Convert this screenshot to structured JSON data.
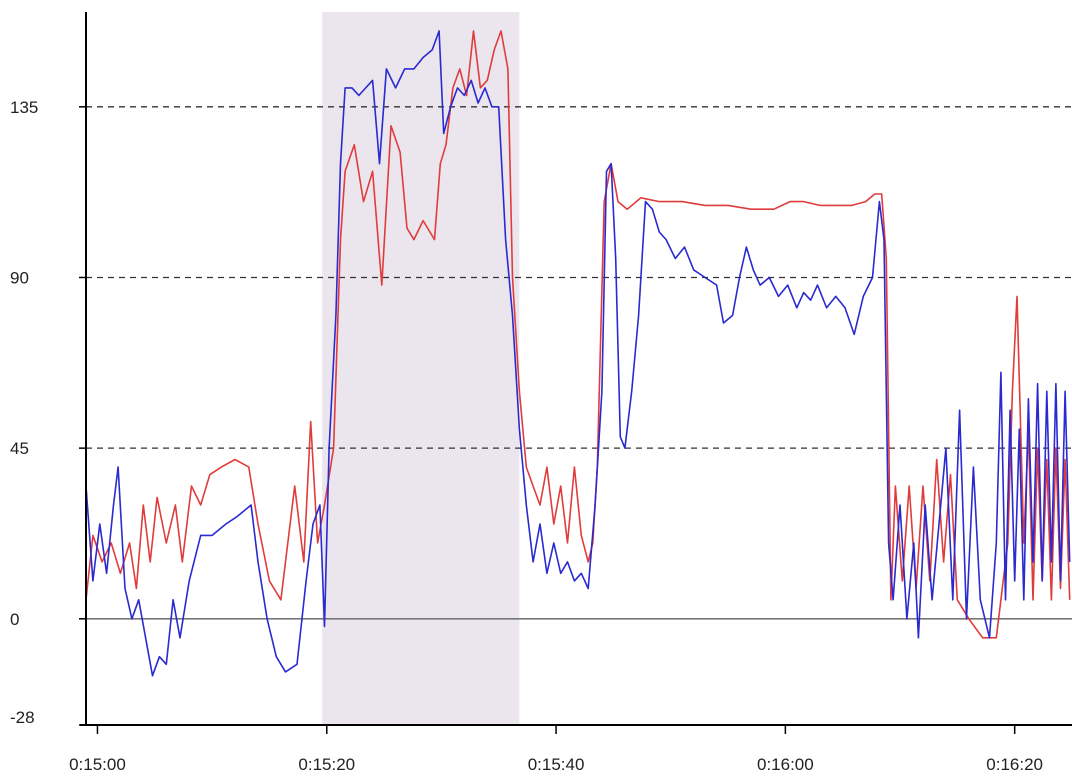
{
  "chart_data": {
    "type": "line",
    "title": "",
    "xlabel": "",
    "ylabel": "",
    "x_unit": "time (h:mm:ss)",
    "xlim": [
      "0:14:59",
      "0:16:25"
    ],
    "ylim": [
      -28,
      160
    ],
    "y_ticks": [
      {
        "value": -28,
        "label": "-28"
      },
      {
        "value": 0,
        "label": "0"
      },
      {
        "value": 45,
        "label": "45"
      },
      {
        "value": 90,
        "label": "90"
      },
      {
        "value": 135,
        "label": "135"
      }
    ],
    "x_ticks": [
      {
        "value": "0:15:00",
        "label": "0:15:00"
      },
      {
        "value": "0:15:20",
        "label": "0:15:20"
      },
      {
        "value": "0:15:40",
        "label": "0:15:40"
      },
      {
        "value": "0:16:00",
        "label": "0:16:00"
      },
      {
        "value": "0:16:20",
        "label": "0:16:20"
      }
    ],
    "grid": {
      "horizontal_dashed_at": [
        45,
        90,
        135
      ],
      "zero_line": true
    },
    "highlight_band": {
      "x_start": "0:15:19.6",
      "x_end": "0:15:36.8",
      "color": "#ebe6ee"
    },
    "legend": "none",
    "series": [
      {
        "color": "#e03c3c",
        "points": [
          [
            "0:14:59.0",
            5
          ],
          [
            "0:14:59.6",
            22
          ],
          [
            "0:15:00.4",
            15
          ],
          [
            "0:15:01.2",
            20
          ],
          [
            "0:15:02.0",
            12
          ],
          [
            "0:15:02.8",
            20
          ],
          [
            "0:15:03.4",
            8
          ],
          [
            "0:15:04.0",
            30
          ],
          [
            "0:15:04.6",
            15
          ],
          [
            "0:15:05.2",
            32
          ],
          [
            "0:15:06.0",
            20
          ],
          [
            "0:15:06.8",
            30
          ],
          [
            "0:15:07.4",
            15
          ],
          [
            "0:15:08.2",
            35
          ],
          [
            "0:15:09.0",
            30
          ],
          [
            "0:15:09.8",
            38
          ],
          [
            "0:15:10.8",
            40
          ],
          [
            "0:15:12.0",
            42
          ],
          [
            "0:15:13.2",
            40
          ],
          [
            "0:15:14.0",
            25
          ],
          [
            "0:15:15.0",
            10
          ],
          [
            "0:15:16.0",
            5
          ],
          [
            "0:15:17.2",
            35
          ],
          [
            "0:15:18.0",
            15
          ],
          [
            "0:15:18.6",
            52
          ],
          [
            "0:15:19.2",
            20
          ],
          [
            "0:15:19.8",
            30
          ],
          [
            "0:15:20.6",
            45
          ],
          [
            "0:15:21.2",
            100
          ],
          [
            "0:15:21.6",
            118
          ],
          [
            "0:15:22.4",
            125
          ],
          [
            "0:15:23.2",
            110
          ],
          [
            "0:15:24.0",
            118
          ],
          [
            "0:15:24.8",
            88
          ],
          [
            "0:15:25.6",
            130
          ],
          [
            "0:15:26.4",
            123
          ],
          [
            "0:15:27.0",
            103
          ],
          [
            "0:15:27.6",
            100
          ],
          [
            "0:15:28.4",
            105
          ],
          [
            "0:15:29.4",
            100
          ],
          [
            "0:15:29.9",
            120
          ],
          [
            "0:15:30.4",
            125
          ],
          [
            "0:15:31.0",
            140
          ],
          [
            "0:15:31.6",
            145
          ],
          [
            "0:15:32.2",
            138
          ],
          [
            "0:15:32.8",
            155
          ],
          [
            "0:15:33.4",
            140
          ],
          [
            "0:15:34.0",
            142
          ],
          [
            "0:15:34.6",
            150
          ],
          [
            "0:15:35.2",
            155
          ],
          [
            "0:15:35.8",
            145
          ],
          [
            "0:15:36.2",
            90
          ],
          [
            "0:15:36.8",
            60
          ],
          [
            "0:15:37.4",
            40
          ],
          [
            "0:15:38.0",
            35
          ],
          [
            "0:15:38.6",
            30
          ],
          [
            "0:15:39.2",
            40
          ],
          [
            "0:15:39.8",
            25
          ],
          [
            "0:15:40.4",
            35
          ],
          [
            "0:15:41.0",
            20
          ],
          [
            "0:15:41.6",
            40
          ],
          [
            "0:15:42.2",
            22
          ],
          [
            "0:15:42.8",
            15
          ],
          [
            "0:15:43.2",
            20
          ],
          [
            "0:15:43.6",
            40
          ],
          [
            "0:15:44.2",
            110
          ],
          [
            "0:15:44.8",
            120
          ],
          [
            "0:15:45.4",
            110
          ],
          [
            "0:15:46.2",
            108
          ],
          [
            "0:15:47.4",
            111
          ],
          [
            "0:15:49.0",
            110
          ],
          [
            "0:15:51.0",
            110
          ],
          [
            "0:15:53.0",
            109
          ],
          [
            "0:15:55.0",
            109
          ],
          [
            "0:15:57.0",
            108
          ],
          [
            "0:15:59.0",
            108
          ],
          [
            "0:16:00.4",
            110
          ],
          [
            "0:16:01.6",
            110
          ],
          [
            "0:16:03.0",
            109
          ],
          [
            "0:16:04.4",
            109
          ],
          [
            "0:16:05.8",
            109
          ],
          [
            "0:16:07.0",
            110
          ],
          [
            "0:16:07.8",
            112
          ],
          [
            "0:16:08.4",
            112
          ],
          [
            "0:16:08.8",
            95
          ],
          [
            "0:16:09.2",
            5
          ],
          [
            "0:16:09.6",
            35
          ],
          [
            "0:16:10.2",
            10
          ],
          [
            "0:16:10.8",
            35
          ],
          [
            "0:16:11.4",
            8
          ],
          [
            "0:16:12.0",
            35
          ],
          [
            "0:16:12.6",
            10
          ],
          [
            "0:16:13.2",
            42
          ],
          [
            "0:16:13.8",
            15
          ],
          [
            "0:16:14.4",
            38
          ],
          [
            "0:16:15.0",
            5
          ],
          [
            "0:16:16.0",
            0
          ],
          [
            "0:16:17.2",
            -5
          ],
          [
            "0:16:18.4",
            -5
          ],
          [
            "0:16:19.4",
            20
          ],
          [
            "0:16:19.8",
            60
          ],
          [
            "0:16:20.2",
            85
          ],
          [
            "0:16:20.8",
            20
          ],
          [
            "0:16:21.2",
            50
          ],
          [
            "0:16:21.6",
            5
          ],
          [
            "0:16:22.0",
            45
          ],
          [
            "0:16:22.4",
            10
          ],
          [
            "0:16:22.8",
            42
          ],
          [
            "0:16:23.2",
            5
          ],
          [
            "0:16:23.6",
            45
          ],
          [
            "0:16:24.0",
            8
          ],
          [
            "0:16:24.4",
            42
          ],
          [
            "0:16:24.8",
            5
          ]
        ]
      },
      {
        "color": "#2a2ad0",
        "points": [
          [
            "0:14:59.0",
            35
          ],
          [
            "0:14:59.6",
            10
          ],
          [
            "0:15:00.2",
            25
          ],
          [
            "0:15:00.8",
            12
          ],
          [
            "0:15:01.4",
            30
          ],
          [
            "0:15:01.8",
            40
          ],
          [
            "0:15:02.4",
            8
          ],
          [
            "0:15:03.0",
            0
          ],
          [
            "0:15:03.6",
            5
          ],
          [
            "0:15:04.2",
            -5
          ],
          [
            "0:15:04.8",
            -15
          ],
          [
            "0:15:05.4",
            -10
          ],
          [
            "0:15:06.0",
            -12
          ],
          [
            "0:15:06.6",
            5
          ],
          [
            "0:15:07.2",
            -5
          ],
          [
            "0:15:08.0",
            10
          ],
          [
            "0:15:09.0",
            22
          ],
          [
            "0:15:10.0",
            22
          ],
          [
            "0:15:11.2",
            25
          ],
          [
            "0:15:12.2",
            27
          ],
          [
            "0:15:13.4",
            30
          ],
          [
            "0:15:14.0",
            15
          ],
          [
            "0:15:14.8",
            0
          ],
          [
            "0:15:15.6",
            -10
          ],
          [
            "0:15:16.4",
            -14
          ],
          [
            "0:15:17.4",
            -12
          ],
          [
            "0:15:18.2",
            10
          ],
          [
            "0:15:18.8",
            25
          ],
          [
            "0:15:19.4",
            30
          ],
          [
            "0:15:19.8",
            -2
          ],
          [
            "0:15:20.2",
            45
          ],
          [
            "0:15:20.8",
            80
          ],
          [
            "0:15:21.2",
            120
          ],
          [
            "0:15:21.6",
            140
          ],
          [
            "0:15:22.2",
            140
          ],
          [
            "0:15:22.8",
            138
          ],
          [
            "0:15:23.4",
            140
          ],
          [
            "0:15:24.0",
            142
          ],
          [
            "0:15:24.6",
            120
          ],
          [
            "0:15:25.2",
            145
          ],
          [
            "0:15:26.0",
            140
          ],
          [
            "0:15:26.8",
            145
          ],
          [
            "0:15:27.6",
            145
          ],
          [
            "0:15:28.4",
            148
          ],
          [
            "0:15:29.2",
            150
          ],
          [
            "0:15:29.8",
            155
          ],
          [
            "0:15:30.2",
            128
          ],
          [
            "0:15:30.8",
            135
          ],
          [
            "0:15:31.4",
            140
          ],
          [
            "0:15:32.0",
            138
          ],
          [
            "0:15:32.6",
            142
          ],
          [
            "0:15:33.2",
            136
          ],
          [
            "0:15:33.8",
            140
          ],
          [
            "0:15:34.4",
            135
          ],
          [
            "0:15:35.0",
            135
          ],
          [
            "0:15:35.6",
            100
          ],
          [
            "0:15:36.2",
            80
          ],
          [
            "0:15:36.8",
            50
          ],
          [
            "0:15:37.4",
            30
          ],
          [
            "0:15:38.0",
            15
          ],
          [
            "0:15:38.6",
            25
          ],
          [
            "0:15:39.2",
            12
          ],
          [
            "0:15:39.8",
            20
          ],
          [
            "0:15:40.4",
            12
          ],
          [
            "0:15:41.0",
            15
          ],
          [
            "0:15:41.6",
            10
          ],
          [
            "0:15:42.2",
            12
          ],
          [
            "0:15:42.8",
            8
          ],
          [
            "0:15:43.4",
            30
          ],
          [
            "0:15:44.0",
            60
          ],
          [
            "0:15:44.4",
            118
          ],
          [
            "0:15:44.8",
            120
          ],
          [
            "0:15:45.2",
            95
          ],
          [
            "0:15:45.6",
            48
          ],
          [
            "0:15:46.0",
            45
          ],
          [
            "0:15:46.6",
            60
          ],
          [
            "0:15:47.2",
            80
          ],
          [
            "0:15:47.8",
            110
          ],
          [
            "0:15:48.4",
            108
          ],
          [
            "0:15:49.0",
            102
          ],
          [
            "0:15:49.6",
            100
          ],
          [
            "0:15:50.4",
            95
          ],
          [
            "0:15:51.2",
            98
          ],
          [
            "0:15:52.0",
            92
          ],
          [
            "0:15:53.0",
            90
          ],
          [
            "0:15:54.0",
            88
          ],
          [
            "0:15:54.6",
            78
          ],
          [
            "0:15:55.4",
            80
          ],
          [
            "0:15:56.0",
            90
          ],
          [
            "0:15:56.6",
            98
          ],
          [
            "0:15:57.2",
            92
          ],
          [
            "0:15:57.8",
            88
          ],
          [
            "0:15:58.6",
            90
          ],
          [
            "0:15:59.4",
            85
          ],
          [
            "0:16:00.2",
            88
          ],
          [
            "0:16:01.0",
            82
          ],
          [
            "0:16:01.6",
            86
          ],
          [
            "0:16:02.2",
            84
          ],
          [
            "0:16:02.8",
            88
          ],
          [
            "0:16:03.6",
            82
          ],
          [
            "0:16:04.4",
            85
          ],
          [
            "0:16:05.2",
            82
          ],
          [
            "0:16:06.0",
            75
          ],
          [
            "0:16:06.8",
            85
          ],
          [
            "0:16:07.6",
            90
          ],
          [
            "0:16:08.2",
            110
          ],
          [
            "0:16:08.6",
            100
          ],
          [
            "0:16:09.0",
            20
          ],
          [
            "0:16:09.4",
            5
          ],
          [
            "0:16:10.0",
            30
          ],
          [
            "0:16:10.6",
            0
          ],
          [
            "0:16:11.2",
            20
          ],
          [
            "0:16:11.6",
            -5
          ],
          [
            "0:16:12.2",
            30
          ],
          [
            "0:16:12.8",
            5
          ],
          [
            "0:16:13.4",
            25
          ],
          [
            "0:16:14.0",
            45
          ],
          [
            "0:16:14.6",
            5
          ],
          [
            "0:16:15.2",
            55
          ],
          [
            "0:16:15.8",
            0
          ],
          [
            "0:16:16.4",
            40
          ],
          [
            "0:16:17.0",
            5
          ],
          [
            "0:16:17.8",
            -5
          ],
          [
            "0:16:18.4",
            20
          ],
          [
            "0:16:18.8",
            65
          ],
          [
            "0:16:19.2",
            5
          ],
          [
            "0:16:19.6",
            55
          ],
          [
            "0:16:20.0",
            10
          ],
          [
            "0:16:20.4",
            50
          ],
          [
            "0:16:20.8",
            5
          ],
          [
            "0:16:21.2",
            58
          ],
          [
            "0:16:21.6",
            15
          ],
          [
            "0:16:22.0",
            62
          ],
          [
            "0:16:22.4",
            10
          ],
          [
            "0:16:22.8",
            60
          ],
          [
            "0:16:23.2",
            15
          ],
          [
            "0:16:23.6",
            62
          ],
          [
            "0:16:24.0",
            10
          ],
          [
            "0:16:24.4",
            60
          ],
          [
            "0:16:24.8",
            15
          ]
        ]
      }
    ]
  }
}
